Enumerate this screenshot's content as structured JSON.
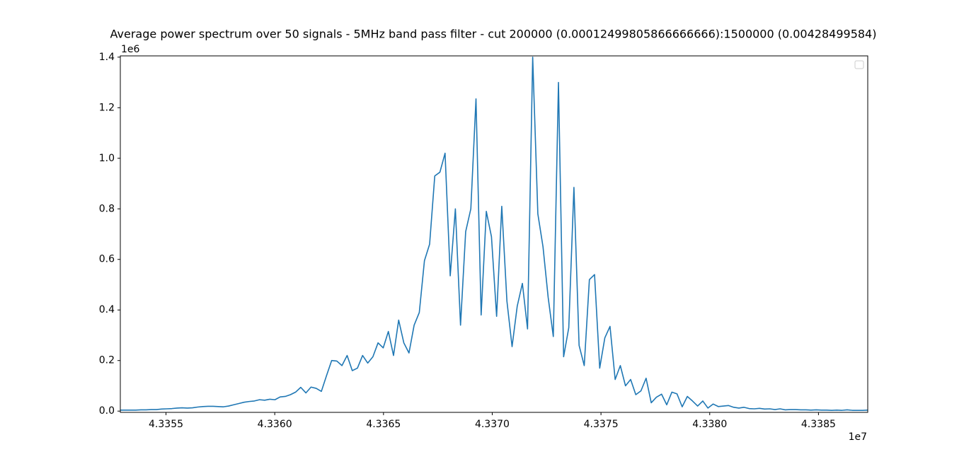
{
  "chart_data": {
    "type": "line",
    "title": "Average power spectrum over 50 signals - 5MHz band pass filter - cut 200000 (0.00012499805866666666):1500000 (0.00428499584)",
    "x_offset_label": "1e7",
    "y_offset_label": "1e6",
    "legend": "upper right",
    "xlim": [
      43352900,
      43387265
    ],
    "ylim": [
      -5000,
      1405000
    ],
    "xticks": [
      {
        "value": 43355000,
        "label": "4.3355"
      },
      {
        "value": 43360000,
        "label": "4.3360"
      },
      {
        "value": 43365000,
        "label": "4.3365"
      },
      {
        "value": 43370000,
        "label": "4.3370"
      },
      {
        "value": 43375000,
        "label": "4.3375"
      },
      {
        "value": 43380000,
        "label": "4.3380"
      },
      {
        "value": 43385000,
        "label": "4.3385"
      }
    ],
    "yticks": [
      {
        "value": 0,
        "label": "0.0"
      },
      {
        "value": 200000,
        "label": "0.2"
      },
      {
        "value": 400000,
        "label": "0.4"
      },
      {
        "value": 600000,
        "label": "0.6"
      },
      {
        "value": 800000,
        "label": "0.8"
      },
      {
        "value": 1000000,
        "label": "1.0"
      },
      {
        "value": 1200000,
        "label": "1.2"
      },
      {
        "value": 1400000,
        "label": "1.4"
      }
    ],
    "x": [
      43352900,
      43353137,
      43353374,
      43353611,
      43353848,
      43354085,
      43354322,
      43354559,
      43354796,
      43355033,
      43355270,
      43355507,
      43355744,
      43355981,
      43356218,
      43356455,
      43356692,
      43356929,
      43357166,
      43357403,
      43357640,
      43357877,
      43358114,
      43358351,
      43358588,
      43358825,
      43359062,
      43359299,
      43359536,
      43359773,
      43360010,
      43360247,
      43360484,
      43360721,
      43360958,
      43361195,
      43361432,
      43361669,
      43361906,
      43362143,
      43362380,
      43362617,
      43362854,
      43363091,
      43363328,
      43363565,
      43363802,
      43364039,
      43364276,
      43364513,
      43364750,
      43364987,
      43365224,
      43365461,
      43365698,
      43365935,
      43366172,
      43366409,
      43366646,
      43366883,
      43367120,
      43367357,
      43367594,
      43367831,
      43368068,
      43368305,
      43368542,
      43368779,
      43369016,
      43369253,
      43369490,
      43369727,
      43369964,
      43370201,
      43370438,
      43370675,
      43370912,
      43371149,
      43371386,
      43371623,
      43371860,
      43372097,
      43372334,
      43372571,
      43372808,
      43373045,
      43373282,
      43373519,
      43373756,
      43373993,
      43374230,
      43374467,
      43374704,
      43374941,
      43375178,
      43375415,
      43375652,
      43375889,
      43376126,
      43376363,
      43376600,
      43376837,
      43377074,
      43377311,
      43377548,
      43377785,
      43378022,
      43378259,
      43378496,
      43378733,
      43378970,
      43379207,
      43379444,
      43379681,
      43379918,
      43380155,
      43380392,
      43380629,
      43380866,
      43381103,
      43381340,
      43381577,
      43381814,
      43382051,
      43382288,
      43382525,
      43382762,
      43382999,
      43383236,
      43383473,
      43383710,
      43383947,
      43384184,
      43384421,
      43384658,
      43384895,
      43385132,
      43385369,
      43385606,
      43385843,
      43386080,
      43386317,
      43386554,
      43386791,
      43387028,
      43387265
    ],
    "series": [
      {
        "color": "#1f77b4",
        "values": [
          4000,
          4000,
          4000,
          4000,
          5000,
          5000,
          6000,
          6000,
          8000,
          9000,
          10000,
          12000,
          13000,
          12000,
          13000,
          16000,
          18000,
          19000,
          19000,
          18000,
          17000,
          20000,
          25000,
          30000,
          35000,
          38000,
          40000,
          45000,
          43000,
          47000,
          45000,
          56000,
          58000,
          65000,
          75000,
          94000,
          72000,
          95000,
          90000,
          78000,
          140000,
          200000,
          198000,
          180000,
          220000,
          160000,
          170000,
          220000,
          190000,
          215000,
          270000,
          250000,
          315000,
          220000,
          360000,
          270000,
          230000,
          340000,
          390000,
          595000,
          660000,
          930000,
          945000,
          1020000,
          535000,
          800000,
          340000,
          710000,
          800000,
          1235000,
          380000,
          790000,
          690000,
          375000,
          810000,
          435000,
          255000,
          415000,
          505000,
          325000,
          1400000,
          780000,
          650000,
          450000,
          295000,
          1300000,
          215000,
          330000,
          885000,
          260000,
          180000,
          520000,
          540000,
          170000,
          290000,
          335000,
          125000,
          180000,
          100000,
          125000,
          65000,
          80000,
          130000,
          33000,
          55000,
          67000,
          25000,
          75000,
          68000,
          17000,
          58000,
          40000,
          20000,
          40000,
          12000,
          28000,
          18000,
          20000,
          22000,
          15000,
          12000,
          15000,
          10000,
          9000,
          11000,
          8000,
          9000,
          6000,
          9000,
          5000,
          6000,
          6000,
          5000,
          5000,
          4000,
          5000,
          4000,
          4000,
          3000,
          4000,
          3000,
          5000,
          3000,
          3000,
          3000,
          4000
        ]
      }
    ]
  }
}
